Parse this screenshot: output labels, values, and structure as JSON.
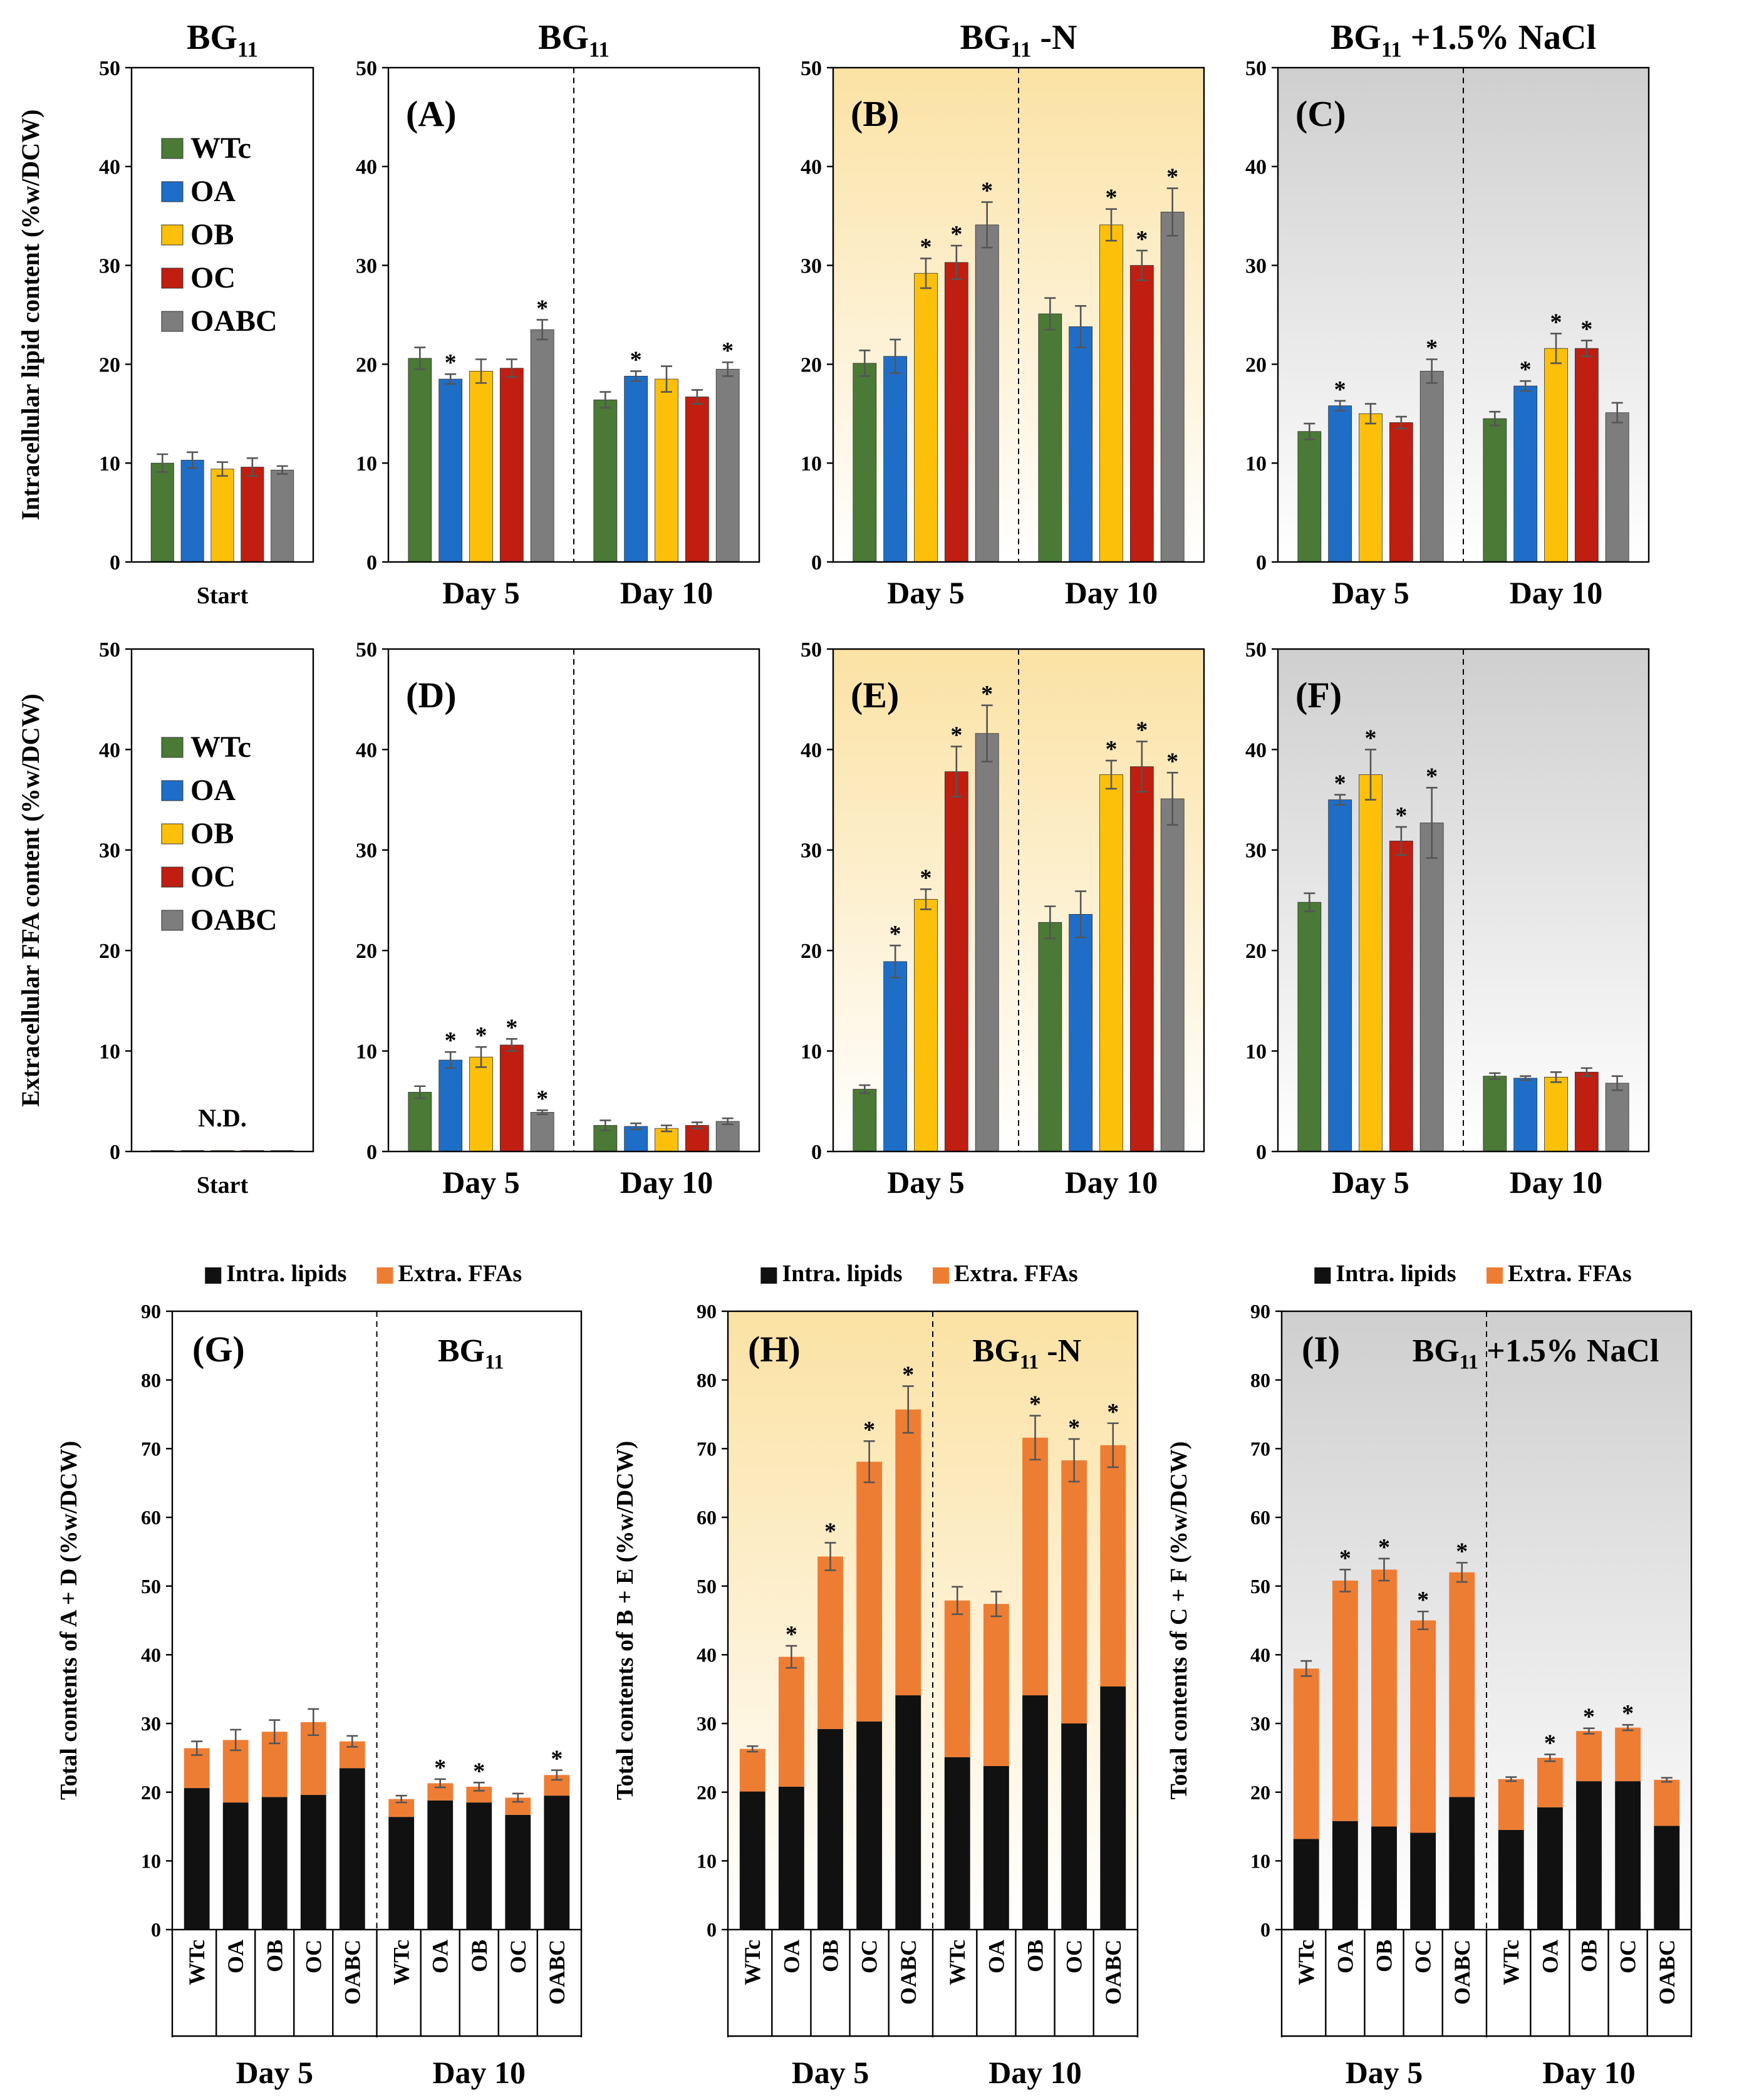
{
  "colors": {
    "WTc": "#4a7a35",
    "OA": "#1e6ec8",
    "OB": "#fcc00a",
    "OC": "#c01e10",
    "OABC": "#7d7d7d",
    "intra": "#111111",
    "extra": "#ee7d34"
  },
  "strains": [
    "WTc",
    "OA",
    "OB",
    "OC",
    "OABC"
  ],
  "chart_data": [
    {
      "id": "start-intra",
      "type": "bar",
      "label": "",
      "title": "BG",
      "title_sub": "11",
      "title_rest": "",
      "ylabel": "Intracellular lipid content (%w/DCW)",
      "ylim": [
        0,
        50
      ],
      "yticks": [
        0,
        10,
        20,
        30,
        40,
        50
      ],
      "background": "white",
      "legend": "left",
      "groups": [
        "Start"
      ],
      "values": [
        [
          10.0,
          10.3,
          9.4,
          9.6,
          9.3
        ]
      ],
      "errors": [
        [
          0.9,
          0.8,
          0.7,
          0.9,
          0.4
        ]
      ],
      "sig": [
        [
          false,
          false,
          false,
          false,
          false
        ]
      ]
    },
    {
      "id": "A",
      "type": "bar",
      "label": "(A)",
      "title": "BG",
      "title_sub": "11",
      "title_rest": "",
      "ylabel": "",
      "ylim": [
        0,
        50
      ],
      "yticks": [
        0,
        10,
        20,
        30,
        40,
        50
      ],
      "background": "white",
      "groups": [
        "Day 5",
        "Day 10"
      ],
      "values": [
        [
          20.6,
          18.5,
          19.3,
          19.6,
          23.5
        ],
        [
          16.4,
          18.8,
          18.5,
          16.7,
          19.5
        ]
      ],
      "errors": [
        [
          1.1,
          0.5,
          1.2,
          0.9,
          1.0
        ],
        [
          0.8,
          0.5,
          1.3,
          0.7,
          0.7
        ]
      ],
      "sig": [
        [
          false,
          true,
          false,
          false,
          true
        ],
        [
          false,
          true,
          false,
          false,
          true
        ]
      ]
    },
    {
      "id": "B",
      "type": "bar",
      "label": "(B)",
      "title": "BG",
      "title_sub": "11",
      "title_rest": " -N",
      "ylabel": "",
      "ylim": [
        0,
        50
      ],
      "yticks": [
        0,
        10,
        20,
        30,
        40,
        50
      ],
      "background": "yellow",
      "groups": [
        "Day 5",
        "Day 10"
      ],
      "values": [
        [
          20.1,
          20.8,
          29.2,
          30.3,
          34.1
        ],
        [
          25.1,
          23.8,
          34.1,
          30.0,
          35.4
        ]
      ],
      "errors": [
        [
          1.3,
          1.7,
          1.5,
          1.7,
          2.3
        ],
        [
          1.6,
          2.1,
          1.6,
          1.5,
          2.4
        ]
      ],
      "sig": [
        [
          false,
          false,
          true,
          true,
          true
        ],
        [
          false,
          false,
          true,
          true,
          true
        ]
      ]
    },
    {
      "id": "C",
      "type": "bar",
      "label": "(C)",
      "title": "BG",
      "title_sub": "11",
      "title_rest": " +1.5% NaCl",
      "ylabel": "",
      "ylim": [
        0,
        50
      ],
      "yticks": [
        0,
        10,
        20,
        30,
        40,
        50
      ],
      "background": "gray",
      "groups": [
        "Day 5",
        "Day 10"
      ],
      "values": [
        [
          13.2,
          15.8,
          15.0,
          14.1,
          19.3
        ],
        [
          14.5,
          17.8,
          21.6,
          21.6,
          15.1
        ]
      ],
      "errors": [
        [
          0.8,
          0.5,
          1.0,
          0.6,
          1.2
        ],
        [
          0.7,
          0.5,
          1.5,
          0.8,
          1.0
        ]
      ],
      "sig": [
        [
          false,
          true,
          false,
          false,
          true
        ],
        [
          false,
          true,
          true,
          true,
          false
        ]
      ]
    },
    {
      "id": "start-extra",
      "type": "bar",
      "label": "",
      "title": "",
      "title_sub": "",
      "title_rest": "",
      "ylabel": "Extracellular FFA content (%w/DCW)",
      "ylim": [
        0,
        50
      ],
      "yticks": [
        0,
        10,
        20,
        30,
        40,
        50
      ],
      "background": "white",
      "legend": "left",
      "groups": [
        "Start"
      ],
      "note": "N.D.",
      "values": [
        [
          0.1,
          0.1,
          0.1,
          0.1,
          0.1
        ]
      ],
      "errors": [
        [
          0,
          0,
          0,
          0,
          0
        ]
      ],
      "sig": [
        [
          false,
          false,
          false,
          false,
          false
        ]
      ]
    },
    {
      "id": "D",
      "type": "bar",
      "label": "(D)",
      "title": "",
      "title_sub": "",
      "title_rest": "",
      "ylabel": "",
      "ylim": [
        0,
        50
      ],
      "yticks": [
        0,
        10,
        20,
        30,
        40,
        50
      ],
      "background": "white",
      "groups": [
        "Day 5",
        "Day 10"
      ],
      "values": [
        [
          5.9,
          9.1,
          9.4,
          10.6,
          3.9
        ],
        [
          2.6,
          2.5,
          2.3,
          2.6,
          3.0
        ]
      ],
      "errors": [
        [
          0.6,
          0.8,
          1.0,
          0.6,
          0.2
        ],
        [
          0.5,
          0.3,
          0.3,
          0.3,
          0.3
        ]
      ],
      "sig": [
        [
          false,
          true,
          true,
          true,
          true
        ],
        [
          false,
          false,
          false,
          false,
          false
        ]
      ]
    },
    {
      "id": "E",
      "type": "bar",
      "label": "(E)",
      "title": "",
      "title_sub": "",
      "title_rest": "",
      "ylabel": "",
      "ylim": [
        0,
        50
      ],
      "yticks": [
        0,
        10,
        20,
        30,
        40,
        50
      ],
      "background": "yellow",
      "groups": [
        "Day 5",
        "Day 10"
      ],
      "values": [
        [
          6.2,
          18.9,
          25.1,
          37.8,
          41.6
        ],
        [
          22.8,
          23.6,
          37.5,
          38.3,
          35.1
        ]
      ],
      "errors": [
        [
          0.4,
          1.6,
          1.0,
          2.5,
          2.8
        ],
        [
          1.6,
          2.3,
          1.4,
          2.5,
          2.6
        ]
      ],
      "sig": [
        [
          false,
          true,
          true,
          true,
          true
        ],
        [
          false,
          false,
          true,
          true,
          true
        ]
      ]
    },
    {
      "id": "F",
      "type": "bar",
      "label": "(F)",
      "title": "",
      "title_sub": "",
      "title_rest": "",
      "ylabel": "",
      "ylim": [
        0,
        50
      ],
      "yticks": [
        0,
        10,
        20,
        30,
        40,
        50
      ],
      "background": "gray",
      "groups": [
        "Day 5",
        "Day 10"
      ],
      "values": [
        [
          24.8,
          35.0,
          37.5,
          30.9,
          32.7
        ],
        [
          7.5,
          7.3,
          7.4,
          7.9,
          6.8
        ]
      ],
      "errors": [
        [
          0.9,
          0.5,
          2.5,
          1.4,
          3.5
        ],
        [
          0.3,
          0.2,
          0.5,
          0.4,
          0.7
        ]
      ],
      "sig": [
        [
          false,
          true,
          true,
          true,
          true
        ],
        [
          false,
          false,
          false,
          false,
          false
        ]
      ]
    },
    {
      "id": "G",
      "type": "stacked-bar",
      "label": "(G)",
      "title": "BG",
      "title_sub": "11",
      "title_rest": "",
      "ylabel": "Total contents of A + D (%w/DCW)",
      "ylim": [
        0,
        90
      ],
      "yticks": [
        0,
        10,
        20,
        30,
        40,
        50,
        60,
        70,
        80,
        90
      ],
      "background": "white",
      "groups": [
        "Day 5",
        "Day 10"
      ],
      "legend": [
        "Intra. lipids",
        "Extra. FFAs"
      ],
      "intra": [
        [
          20.6,
          18.5,
          19.3,
          19.6,
          23.5
        ],
        [
          16.4,
          18.8,
          18.5,
          16.7,
          19.5
        ]
      ],
      "total": [
        [
          26.4,
          27.6,
          28.8,
          30.2,
          27.4
        ],
        [
          19.0,
          21.3,
          20.8,
          19.2,
          22.5
        ]
      ],
      "errors": [
        [
          1.0,
          1.5,
          1.7,
          1.9,
          0.8
        ],
        [
          0.5,
          0.6,
          0.6,
          0.6,
          0.7
        ]
      ],
      "sig": [
        [
          false,
          false,
          false,
          false,
          false
        ],
        [
          false,
          true,
          true,
          false,
          true
        ]
      ]
    },
    {
      "id": "H",
      "type": "stacked-bar",
      "label": "(H)",
      "title": "BG",
      "title_sub": "11",
      "title_rest": " -N",
      "ylabel": "Total contents of B + E (%w/DCW)",
      "ylim": [
        0,
        90
      ],
      "yticks": [
        0,
        10,
        20,
        30,
        40,
        50,
        60,
        70,
        80,
        90
      ],
      "background": "yellow",
      "groups": [
        "Day 5",
        "Day 10"
      ],
      "legend": [
        "Intra. lipids",
        "Extra. FFAs"
      ],
      "intra": [
        [
          20.1,
          20.8,
          29.2,
          30.3,
          34.1
        ],
        [
          25.1,
          23.8,
          34.1,
          30.0,
          35.4
        ]
      ],
      "total": [
        [
          26.3,
          39.7,
          54.3,
          68.1,
          75.7
        ],
        [
          47.9,
          47.4,
          71.6,
          68.3,
          70.5
        ]
      ],
      "errors": [
        [
          0.4,
          1.6,
          2.0,
          3.0,
          3.4
        ],
        [
          2.0,
          1.8,
          3.2,
          3.1,
          3.2
        ]
      ],
      "sig": [
        [
          false,
          true,
          true,
          true,
          true
        ],
        [
          false,
          false,
          true,
          true,
          true
        ]
      ]
    },
    {
      "id": "I",
      "type": "stacked-bar",
      "label": "(I)",
      "title": "BG",
      "title_sub": "11",
      "title_rest": " +1.5% NaCl",
      "ylabel": "Total contents of C + F (%w/DCW)",
      "ylim": [
        0,
        90
      ],
      "yticks": [
        0,
        10,
        20,
        30,
        40,
        50,
        60,
        70,
        80,
        90
      ],
      "background": "gray",
      "groups": [
        "Day 5",
        "Day 10"
      ],
      "legend": [
        "Intra. lipids",
        "Extra. FFAs"
      ],
      "intra": [
        [
          13.2,
          15.8,
          15.0,
          14.1,
          19.3
        ],
        [
          14.5,
          17.8,
          21.6,
          21.6,
          15.1
        ]
      ],
      "total": [
        [
          38.0,
          50.8,
          52.4,
          45.0,
          52.0
        ],
        [
          21.9,
          25.0,
          28.9,
          29.4,
          21.8
        ]
      ],
      "errors": [
        [
          1.1,
          1.6,
          1.6,
          1.3,
          1.4
        ],
        [
          0.3,
          0.5,
          0.4,
          0.4,
          0.3
        ]
      ],
      "sig": [
        [
          false,
          true,
          true,
          true,
          true
        ],
        [
          false,
          true,
          true,
          true,
          false
        ]
      ]
    }
  ]
}
